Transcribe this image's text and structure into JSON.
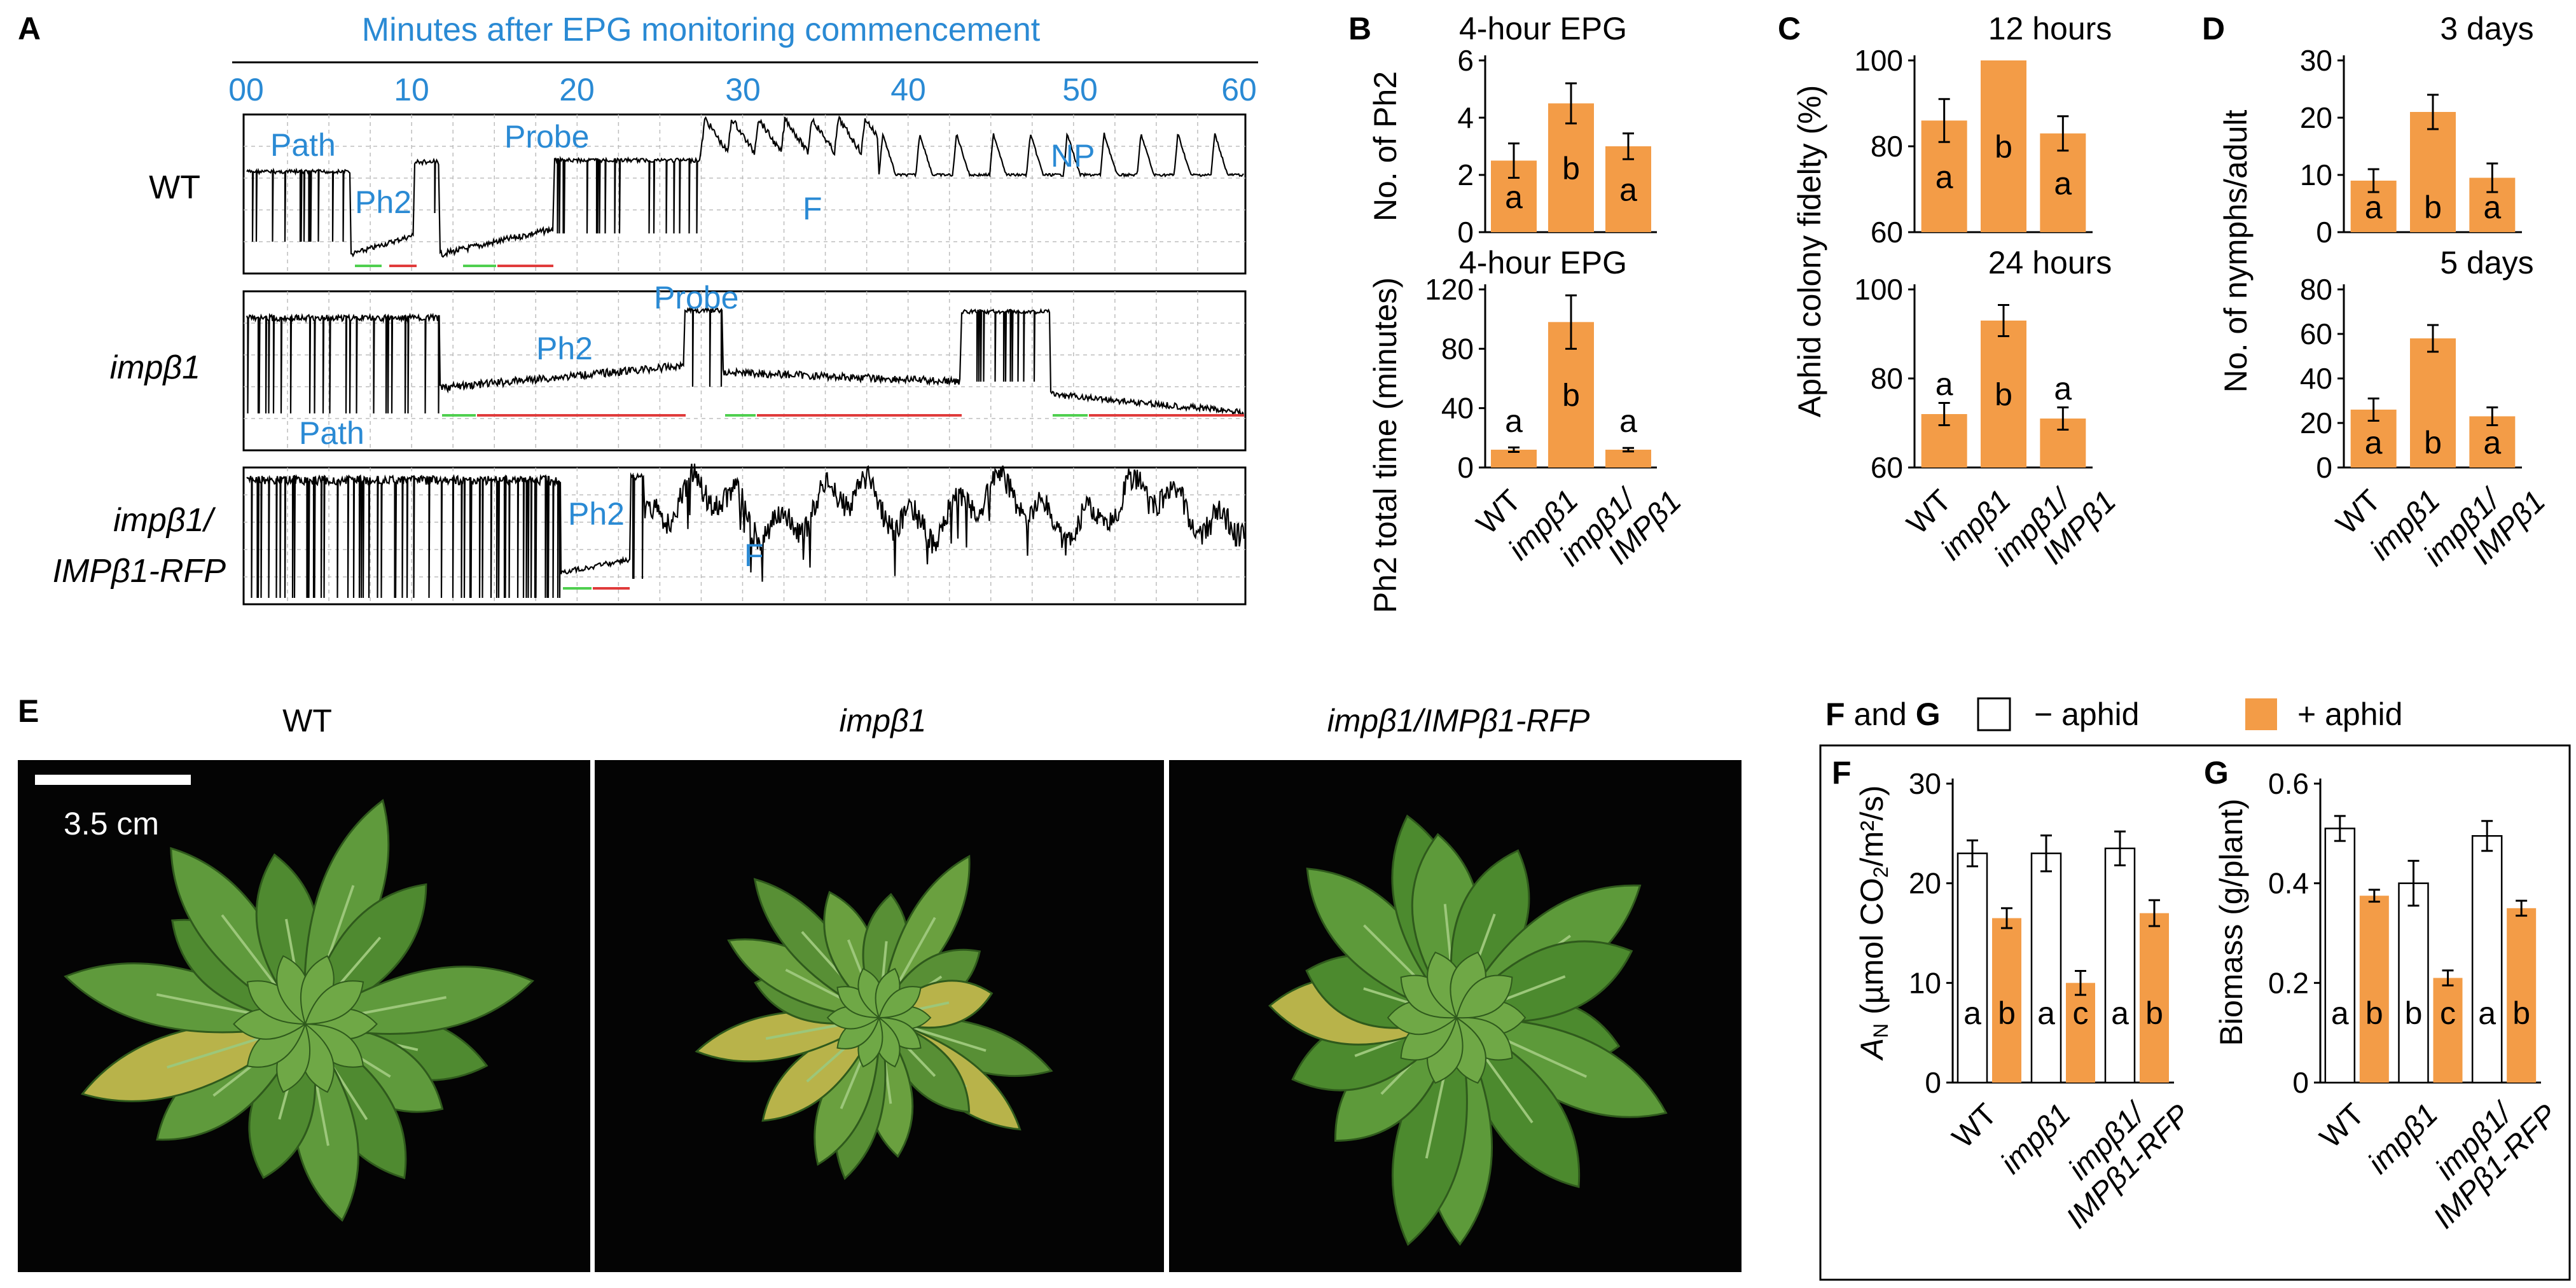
{
  "colors": {
    "orange": "#f39c47",
    "blue": "#2a8ad4",
    "black": "#000000",
    "green": "#4fcf4f",
    "red": "#e03b3b"
  },
  "panelA": {
    "label": "A",
    "axis_title": "Minutes after EPG monitoring commencement",
    "ticks": [
      "00",
      "10",
      "20",
      "30",
      "40",
      "50",
      "60"
    ],
    "rows": [
      {
        "label": "WT",
        "annotations": [
          "Path",
          "Ph2",
          "Probe",
          "F",
          "NP"
        ]
      },
      {
        "label": "impβ1",
        "annotations": [
          "Ph2",
          "Probe",
          "Path"
        ]
      },
      {
        "label": "impβ1/",
        "label2": "IMPβ1-RFP",
        "annotations": [
          "Ph2",
          "F"
        ]
      }
    ]
  },
  "panelB": {
    "label": "B",
    "top_title": "4-hour EPG",
    "bottom_title": "4-hour EPG",
    "top_ylabel": "No. of Ph2",
    "bottom_ylabel": "Ph2 total time (minutes)",
    "top_ticks": [
      "0",
      "2",
      "4",
      "6"
    ],
    "bottom_ticks": [
      "0",
      "40",
      "80",
      "120"
    ]
  },
  "panelC": {
    "label": "C",
    "top_title": "12 hours",
    "bottom_title": "24 hours",
    "ylabel": "Aphid colony fidelty (%)",
    "top_ticks": [
      "60",
      "80",
      "100"
    ],
    "bottom_ticks": [
      "60",
      "80",
      "100"
    ]
  },
  "panelD": {
    "label": "D",
    "top_title": "3 days",
    "bottom_title": "5 days",
    "ylabel": "No. of nymphs/adult",
    "top_ticks": [
      "0",
      "10",
      "20",
      "30"
    ],
    "bottom_ticks": [
      "0",
      "20",
      "40",
      "60",
      "80"
    ]
  },
  "genotype_labels_3": [
    {
      "line1": "WT",
      "line2": ""
    },
    {
      "line1": "impβ1",
      "line2": ""
    },
    {
      "line1": "impβ1/",
      "line2": "IMPβ1"
    }
  ],
  "panelE": {
    "label": "E",
    "titles": [
      "WT",
      "impβ1",
      "impβ1/IMPβ1-RFP"
    ],
    "scale_bar": "3.5 cm"
  },
  "panelFG": {
    "header_label": "F and G",
    "legend": [
      "− aphid",
      "+ aphid"
    ],
    "F": {
      "label": "F",
      "ylabel_main": "A",
      "ylabel_sub": "N",
      "ylabel_rest": " (µmol CO",
      "ylabel_sub2": "2",
      "ylabel_end": "/m²/s)",
      "ticks": [
        "0",
        "10",
        "20",
        "30"
      ]
    },
    "G": {
      "label": "G",
      "ylabel": "Biomass (g/plant)",
      "ticks": [
        "0",
        "0.2",
        "0.4",
        "0.6"
      ]
    },
    "genotype_labels": [
      {
        "line1": "WT",
        "line2": ""
      },
      {
        "line1": "impβ1",
        "line2": ""
      },
      {
        "line1": "impβ1/",
        "line2": "IMPβ1-RFP"
      }
    ]
  },
  "chart_data": [
    {
      "id": "B-top",
      "type": "bar",
      "title": "4-hour EPG",
      "ylabel": "No. of Ph2",
      "categories": [
        "WT",
        "impβ1",
        "impβ1/IMPβ1"
      ],
      "ylim": [
        0,
        6
      ],
      "values": [
        2.5,
        4.5,
        3.0
      ],
      "errors": [
        0.6,
        0.7,
        0.45
      ],
      "letters": [
        "a",
        "b",
        "a"
      ]
    },
    {
      "id": "B-bottom",
      "type": "bar",
      "title": "4-hour EPG",
      "ylabel": "Ph2 total time (minutes)",
      "categories": [
        "WT",
        "impβ1",
        "impβ1/IMPβ1"
      ],
      "ylim": [
        0,
        120
      ],
      "values": [
        12,
        98,
        12
      ],
      "errors": [
        1.5,
        18,
        1.2
      ],
      "letters": [
        "a",
        "b",
        "a"
      ]
    },
    {
      "id": "C-top",
      "type": "bar",
      "title": "12 hours",
      "ylabel": "Aphid colony fidelty (%)",
      "categories": [
        "WT",
        "impβ1",
        "impβ1/IMPβ1"
      ],
      "ylim": [
        60,
        100
      ],
      "values": [
        86,
        100,
        83
      ],
      "errors": [
        5,
        0,
        4
      ],
      "letters": [
        "a",
        "b",
        "a"
      ]
    },
    {
      "id": "C-bottom",
      "type": "bar",
      "title": "24 hours",
      "ylabel": "Aphid colony fidelty (%)",
      "categories": [
        "WT",
        "impβ1",
        "impβ1/IMPβ1"
      ],
      "ylim": [
        60,
        100
      ],
      "values": [
        72,
        93,
        71
      ],
      "errors": [
        2.5,
        3.5,
        2.5
      ],
      "letters": [
        "a",
        "b",
        "a"
      ]
    },
    {
      "id": "D-top",
      "type": "bar",
      "title": "3 days",
      "ylabel": "No. of nymphs/adult",
      "categories": [
        "WT",
        "impβ1",
        "impβ1/IMPβ1"
      ],
      "ylim": [
        0,
        30
      ],
      "values": [
        9,
        21,
        9.5
      ],
      "errors": [
        2,
        3,
        2.5
      ],
      "letters": [
        "a",
        "b",
        "a"
      ]
    },
    {
      "id": "D-bottom",
      "type": "bar",
      "title": "5 days",
      "ylabel": "No. of nymphs/adult",
      "categories": [
        "WT",
        "impβ1",
        "impβ1/IMPβ1"
      ],
      "ylim": [
        0,
        80
      ],
      "values": [
        26,
        58,
        23
      ],
      "errors": [
        5,
        6,
        4
      ],
      "letters": [
        "a",
        "b",
        "a"
      ]
    },
    {
      "id": "F",
      "type": "bar",
      "ylabel": "AN (µmol CO2/m²/s)",
      "categories": [
        "WT",
        "impβ1",
        "impβ1/IMPβ1-RFP"
      ],
      "ylim": [
        0,
        30
      ],
      "series": [
        {
          "name": "− aphid",
          "values": [
            23,
            23,
            23.5
          ],
          "errors": [
            1.3,
            1.8,
            1.7
          ]
        },
        {
          "name": "+ aphid",
          "values": [
            16.5,
            10,
            17
          ],
          "errors": [
            1.0,
            1.2,
            1.3
          ]
        }
      ],
      "letters": [
        "a",
        "b",
        "a",
        "c",
        "a",
        "b"
      ]
    },
    {
      "id": "G",
      "type": "bar",
      "ylabel": "Biomass (g/plant)",
      "categories": [
        "WT",
        "impβ1",
        "impβ1/IMPβ1-RFP"
      ],
      "ylim": [
        0,
        0.6
      ],
      "series": [
        {
          "name": "− aphid",
          "values": [
            0.51,
            0.4,
            0.495
          ],
          "errors": [
            0.025,
            0.045,
            0.03
          ]
        },
        {
          "name": "+ aphid",
          "values": [
            0.375,
            0.21,
            0.35
          ],
          "errors": [
            0.012,
            0.015,
            0.015
          ]
        }
      ],
      "letters": [
        "a",
        "b",
        "b",
        "c",
        "a",
        "b"
      ]
    }
  ]
}
